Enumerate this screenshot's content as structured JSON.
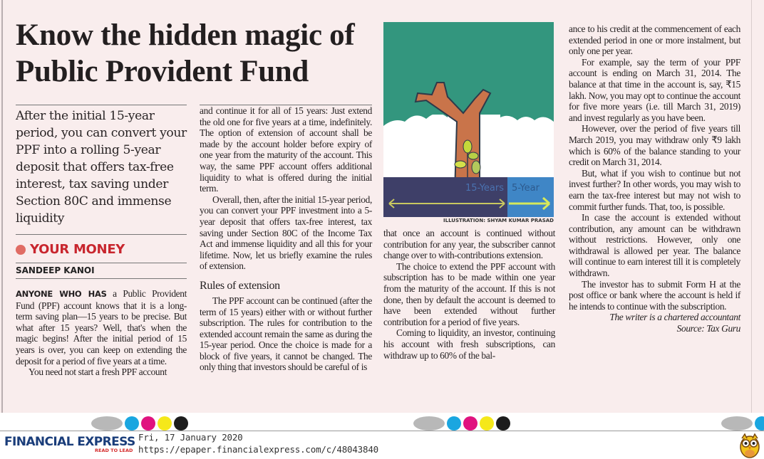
{
  "article": {
    "headline": "Know the hidden magic of Public Provident Fund",
    "deck": "After the initial 15-year period, you can convert your PPF into a rolling 5-year deposit that offers tax-free interest, tax saving under Section 80C and immense liquidity",
    "section": "YOUR MONEY",
    "section_color": "#c8262e",
    "byline": "SANDEEP KANOI",
    "lead_in": "ANYONE WHO HAS",
    "col1": [
      " a Public Provident Fund (PPF) account knows that it is a long-term saving plan—15 years to be precise. But what after 15 years? Well, that's when the magic begins! After the initial period of 15 years is over, you can keep on extending the deposit for a period of five years at a time.",
      "You need not start a fresh PPF account"
    ],
    "col2": [
      "and continue it for all of 15 years: Just extend the old one for five years at a time, indefinitely. The option of extension of account shall be made by the account holder before expiry of one year from the maturity of the account. This way, the same PPF account offers additional liquidity to what is offered during the initial term.",
      "Overall, then, after the initial 15-year period, you can convert your PPF investment into a 5-year deposit that offers tax-free interest, tax saving under Section 80C of the Income Tax Act and immense liquidity and all this for your lifetime. Now, let us briefly examine the rules of extension."
    ],
    "subhead": "Rules of extension",
    "col2b": [
      "The PPF account can be continued (after the term of 15 years) either with or without further subscription. The rules for contribution to the extended account remain the same as during the 15-year period. Once the choice is made for a block of five years, it cannot be changed. The only thing that investors should be careful of is"
    ],
    "illustration": {
      "label_15": "15-Years",
      "label_5": "5-Year",
      "credit": "ILLUSTRATION: SHYAM KUMAR PRASAD"
    },
    "col3": [
      "that once an account is continued without contribution for any year, the subscriber cannot change over to with-contributions extension.",
      "The choice to extend the PPF account with subscription has to be made within one year from the maturity of the account. If this is not done, then by default the account is deemed to have been extended without further contribution for a period of five years.",
      "Coming to liquidity, an investor, continuing his account with fresh subscriptions, can withdraw up to 60% of the bal-"
    ],
    "col4": [
      "ance to his credit at the commencement of each extended period in one or more instalment, but only one per year.",
      "For example, say the term of your PPF account is ending on March 31, 2014. The balance at that time in the account is, say, ₹15 lakh. Now, you may opt to continue the account for five more years (i.e. till March 31, 2019) and invest regularly as you have been.",
      "However, over the period of five years till March 2019, you may withdraw only ₹9 lakh which is 60% of the balance standing to your credit on March 31, 2014.",
      "But, what if you wish to continue but not invest further? In other words, you may wish to earn the tax-free interest but may not wish to commit further funds. That, too, is possible.",
      "In case the account is extended without contribution, any amount can be withdrawn without restrictions. However, only one withdrawal is allowed per year. The balance will continue to earn interest till it is completely withdrawn.",
      "The investor has to submit Form H at the post office or bank where the account is held if he intends to continue with the subscription."
    ],
    "signoff": "The writer is a chartered accountant",
    "source": "Source: Tax Guru"
  },
  "footer": {
    "brand": "FINANCIAL EXPRESS",
    "tagline": "READ TO LEAD",
    "date": "Fri, 17 January 2020",
    "url": "https://epaper.financialexpress.com/c/48043840",
    "registration_colors": [
      "#b8b8b8",
      "#1aa6e0",
      "#e0127f",
      "#f5e81a",
      "#1c1c1c"
    ],
    "mascot_icon": "owl-icon"
  }
}
